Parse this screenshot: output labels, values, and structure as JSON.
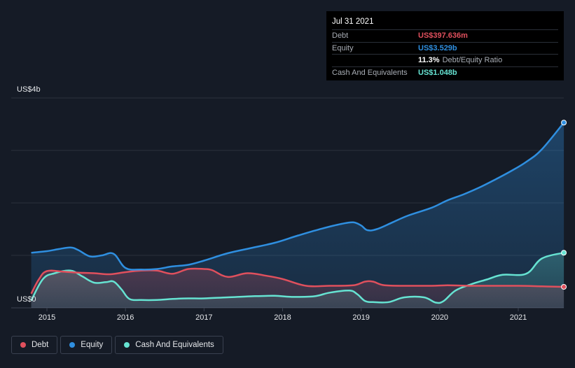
{
  "tooltip": {
    "date": "Jul 31 2021",
    "debt_label": "Debt",
    "debt_value": "US$397.636m",
    "equity_label": "Equity",
    "equity_value": "US$3.529b",
    "ratio_value": "11.3%",
    "ratio_label": "Debt/Equity Ratio",
    "cash_label": "Cash And Equivalents",
    "cash_value": "US$1.048b"
  },
  "colors": {
    "debt": "#e0505d",
    "equity": "#2f8fe0",
    "cash": "#66e3d2",
    "background": "#151b26"
  },
  "legend": [
    {
      "name": "Debt",
      "color": "#e0505d"
    },
    {
      "name": "Equity",
      "color": "#2f8fe0"
    },
    {
      "name": "Cash And Equivalents",
      "color": "#66e3d2"
    }
  ],
  "chart_data": {
    "type": "area",
    "title": "",
    "xlabel": "",
    "ylabel": "",
    "y_top_label": "US$4b",
    "y_bottom_label": "US$0",
    "ylim": [
      0,
      4
    ],
    "y_unit": "US$ billions",
    "xlim": [
      2014.8,
      2021.58
    ],
    "grid": true,
    "legend_position": "bottom-left",
    "x_ticks": [
      "2015",
      "2016",
      "2017",
      "2018",
      "2019",
      "2020",
      "2021"
    ],
    "series": [
      {
        "name": "Debt",
        "points": [
          [
            2014.8,
            0.27
          ],
          [
            2014.9,
            0.55
          ],
          [
            2015.0,
            0.7
          ],
          [
            2015.2,
            0.69
          ],
          [
            2015.4,
            0.67
          ],
          [
            2015.6,
            0.66
          ],
          [
            2015.8,
            0.64
          ],
          [
            2016.0,
            0.68
          ],
          [
            2016.2,
            0.71
          ],
          [
            2016.4,
            0.71
          ],
          [
            2016.6,
            0.65
          ],
          [
            2016.8,
            0.74
          ],
          [
            2017.0,
            0.74
          ],
          [
            2017.1,
            0.72
          ],
          [
            2017.3,
            0.59
          ],
          [
            2017.55,
            0.66
          ],
          [
            2017.8,
            0.61
          ],
          [
            2018.0,
            0.55
          ],
          [
            2018.3,
            0.42
          ],
          [
            2018.6,
            0.42
          ],
          [
            2018.9,
            0.43
          ],
          [
            2019.05,
            0.5
          ],
          [
            2019.15,
            0.5
          ],
          [
            2019.3,
            0.43
          ],
          [
            2019.6,
            0.42
          ],
          [
            2019.9,
            0.42
          ],
          [
            2020.1,
            0.43
          ],
          [
            2020.4,
            0.42
          ],
          [
            2020.7,
            0.42
          ],
          [
            2021.0,
            0.42
          ],
          [
            2021.3,
            0.41
          ],
          [
            2021.58,
            0.4
          ]
        ]
      },
      {
        "name": "Equity",
        "points": [
          [
            2014.8,
            1.05
          ],
          [
            2015.0,
            1.08
          ],
          [
            2015.15,
            1.12
          ],
          [
            2015.3,
            1.15
          ],
          [
            2015.4,
            1.1
          ],
          [
            2015.55,
            0.98
          ],
          [
            2015.7,
            1.0
          ],
          [
            2015.85,
            1.03
          ],
          [
            2016.0,
            0.76
          ],
          [
            2016.2,
            0.73
          ],
          [
            2016.4,
            0.74
          ],
          [
            2016.6,
            0.79
          ],
          [
            2016.8,
            0.82
          ],
          [
            2017.0,
            0.9
          ],
          [
            2017.3,
            1.04
          ],
          [
            2017.6,
            1.14
          ],
          [
            2017.9,
            1.24
          ],
          [
            2018.2,
            1.38
          ],
          [
            2018.5,
            1.51
          ],
          [
            2018.75,
            1.6
          ],
          [
            2018.9,
            1.63
          ],
          [
            2019.0,
            1.57
          ],
          [
            2019.08,
            1.48
          ],
          [
            2019.2,
            1.5
          ],
          [
            2019.4,
            1.63
          ],
          [
            2019.6,
            1.76
          ],
          [
            2019.9,
            1.91
          ],
          [
            2020.1,
            2.05
          ],
          [
            2020.3,
            2.16
          ],
          [
            2020.5,
            2.29
          ],
          [
            2020.7,
            2.44
          ],
          [
            2020.9,
            2.6
          ],
          [
            2021.1,
            2.78
          ],
          [
            2021.3,
            3.02
          ],
          [
            2021.58,
            3.53
          ]
        ]
      },
      {
        "name": "Cash And Equivalents",
        "points": [
          [
            2014.8,
            0.14
          ],
          [
            2014.95,
            0.55
          ],
          [
            2015.1,
            0.66
          ],
          [
            2015.3,
            0.71
          ],
          [
            2015.45,
            0.6
          ],
          [
            2015.6,
            0.48
          ],
          [
            2015.75,
            0.49
          ],
          [
            2015.85,
            0.5
          ],
          [
            2015.95,
            0.35
          ],
          [
            2016.05,
            0.17
          ],
          [
            2016.2,
            0.15
          ],
          [
            2016.4,
            0.15
          ],
          [
            2016.6,
            0.17
          ],
          [
            2016.8,
            0.18
          ],
          [
            2017.0,
            0.18
          ],
          [
            2017.3,
            0.2
          ],
          [
            2017.6,
            0.22
          ],
          [
            2017.9,
            0.23
          ],
          [
            2018.1,
            0.21
          ],
          [
            2018.4,
            0.22
          ],
          [
            2018.6,
            0.29
          ],
          [
            2018.85,
            0.33
          ],
          [
            2018.95,
            0.26
          ],
          [
            2019.05,
            0.13
          ],
          [
            2019.15,
            0.11
          ],
          [
            2019.35,
            0.11
          ],
          [
            2019.55,
            0.2
          ],
          [
            2019.8,
            0.2
          ],
          [
            2019.95,
            0.1
          ],
          [
            2020.05,
            0.13
          ],
          [
            2020.2,
            0.33
          ],
          [
            2020.4,
            0.45
          ],
          [
            2020.6,
            0.54
          ],
          [
            2020.8,
            0.63
          ],
          [
            2021.1,
            0.65
          ],
          [
            2021.3,
            0.94
          ],
          [
            2021.58,
            1.05
          ]
        ]
      }
    ]
  }
}
